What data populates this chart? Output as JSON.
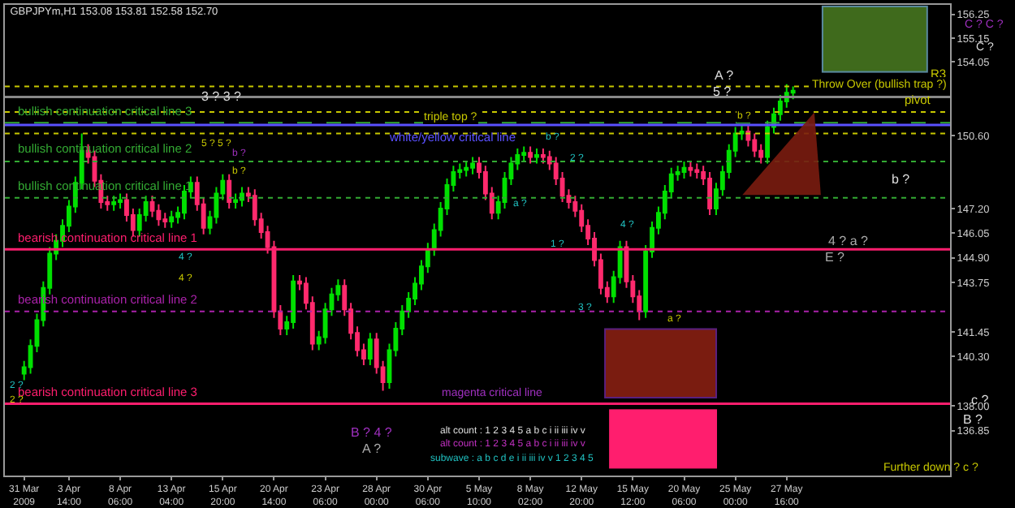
{
  "chart_data": {
    "type": "candlestick",
    "title": "GBPJPYm,H1 153.08 153.81 152.58 152.70",
    "categories": [
      "31 Mar 2009",
      null,
      null,
      null,
      null,
      null,
      null,
      "3 Apr 14:00",
      null,
      null,
      null,
      null,
      null,
      null,
      null,
      "8 Apr 06:00",
      null,
      null,
      null,
      null,
      null,
      null,
      null,
      "13 Apr 04:00",
      null,
      null,
      null,
      null,
      null,
      null,
      null,
      "15 Apr 20:00",
      null,
      null,
      null,
      null,
      null,
      null,
      null,
      "20 Apr 14:00",
      null,
      null,
      null,
      null,
      null,
      null,
      null,
      "23 Apr 06:00",
      null,
      null,
      null,
      null,
      null,
      null,
      null,
      "28 Apr 00:00",
      null,
      null,
      null,
      null,
      null,
      null,
      null,
      "30 Apr 06:00",
      null,
      null,
      null,
      null,
      null,
      null,
      null,
      "5 May 10:00",
      null,
      null,
      null,
      null,
      null,
      null,
      null,
      "8 May 02:00",
      null,
      null,
      null,
      null,
      null,
      null,
      null,
      "12 May 20:00",
      null,
      null,
      null,
      null,
      null,
      null,
      null,
      "15 May 12:00",
      null,
      null,
      null,
      null,
      null,
      null,
      null,
      "20 May 06:00",
      null,
      null,
      null,
      null,
      null,
      null,
      null,
      "25 May 00:00",
      null,
      null,
      null,
      null,
      null,
      null,
      null,
      "27 May 16:00",
      null,
      null,
      null,
      null,
      null,
      null,
      null,
      null,
      null,
      null,
      null,
      null,
      null,
      null,
      null,
      null,
      null,
      null,
      null,
      null,
      null,
      null,
      null,
      null,
      null
    ],
    "ohlc": [
      [
        139.5,
        140.1,
        139.2,
        139.8
      ],
      [
        139.8,
        141.1,
        139.5,
        140.8
      ],
      [
        140.8,
        142.3,
        140.5,
        142.0
      ],
      [
        142.0,
        143.8,
        141.7,
        143.5
      ],
      [
        143.5,
        145.4,
        143.2,
        145.1
      ],
      [
        145.1,
        146.0,
        144.8,
        145.7
      ],
      [
        145.7,
        146.7,
        145.4,
        146.4
      ],
      [
        146.4,
        147.6,
        146.1,
        147.3
      ],
      [
        147.3,
        148.7,
        147.0,
        148.4
      ],
      [
        148.4,
        150.7,
        148.1,
        149.9
      ],
      [
        149.9,
        150.2,
        149.3,
        149.6
      ],
      [
        149.6,
        149.9,
        148.2,
        148.5
      ],
      [
        148.5,
        148.8,
        147.2,
        147.5
      ],
      [
        147.5,
        147.8,
        147.1,
        147.4
      ],
      [
        147.4,
        147.8,
        147.1,
        147.5
      ],
      [
        147.5,
        147.9,
        147.2,
        147.6
      ],
      [
        147.6,
        147.9,
        146.6,
        146.9
      ],
      [
        146.9,
        147.2,
        145.9,
        146.2
      ],
      [
        146.2,
        147.2,
        145.9,
        146.9
      ],
      [
        146.9,
        147.8,
        146.6,
        147.5
      ],
      [
        147.5,
        147.8,
        146.8,
        147.1
      ],
      [
        147.1,
        147.4,
        146.4,
        146.7
      ],
      [
        146.7,
        147.0,
        146.3,
        146.6
      ],
      [
        146.6,
        147.1,
        146.3,
        146.8
      ],
      [
        146.8,
        147.3,
        146.5,
        147.0
      ],
      [
        147.0,
        148.3,
        146.7,
        148.0
      ],
      [
        148.0,
        148.7,
        147.7,
        148.4
      ],
      [
        148.4,
        148.7,
        147.1,
        147.4
      ],
      [
        147.4,
        147.7,
        146.0,
        146.3
      ],
      [
        146.3,
        147.1,
        146.0,
        146.8
      ],
      [
        146.8,
        148.2,
        146.5,
        147.9
      ],
      [
        147.9,
        148.8,
        147.6,
        148.5
      ],
      [
        148.5,
        148.8,
        147.2,
        147.5
      ],
      [
        147.5,
        147.9,
        147.2,
        147.6
      ],
      [
        147.6,
        148.2,
        147.3,
        147.9
      ],
      [
        147.9,
        148.2,
        147.5,
        147.8
      ],
      [
        147.8,
        148.1,
        146.4,
        146.7
      ],
      [
        146.7,
        147.0,
        145.8,
        146.1
      ],
      [
        146.1,
        146.4,
        145.1,
        145.4
      ],
      [
        145.4,
        145.7,
        142.1,
        142.4
      ],
      [
        142.4,
        142.7,
        141.3,
        141.6
      ],
      [
        141.6,
        142.2,
        141.3,
        141.9
      ],
      [
        141.9,
        144.1,
        141.6,
        143.8
      ],
      [
        143.8,
        144.1,
        143.4,
        143.7
      ],
      [
        143.7,
        144.0,
        142.5,
        142.8
      ],
      [
        142.8,
        143.1,
        140.6,
        140.9
      ],
      [
        140.9,
        141.5,
        140.6,
        141.2
      ],
      [
        141.2,
        142.8,
        140.9,
        142.5
      ],
      [
        142.5,
        143.5,
        142.2,
        143.2
      ],
      [
        143.2,
        143.9,
        142.9,
        143.6
      ],
      [
        143.6,
        143.9,
        142.2,
        142.5
      ],
      [
        142.5,
        142.8,
        141.1,
        141.4
      ],
      [
        141.4,
        141.7,
        140.3,
        140.6
      ],
      [
        140.6,
        140.9,
        139.9,
        140.2
      ],
      [
        140.2,
        141.4,
        139.9,
        141.1
      ],
      [
        141.1,
        141.4,
        139.5,
        139.8
      ],
      [
        139.8,
        140.1,
        138.7,
        139.1
      ],
      [
        139.1,
        140.9,
        138.8,
        140.6
      ],
      [
        140.6,
        141.9,
        140.3,
        141.6
      ],
      [
        141.6,
        142.7,
        141.3,
        142.4
      ],
      [
        142.4,
        143.3,
        142.1,
        143.0
      ],
      [
        143.0,
        144.0,
        142.7,
        143.7
      ],
      [
        143.7,
        144.8,
        143.4,
        144.5
      ],
      [
        144.5,
        145.6,
        144.2,
        145.3
      ],
      [
        145.3,
        146.5,
        145.0,
        146.2
      ],
      [
        146.2,
        147.5,
        145.9,
        147.2
      ],
      [
        147.2,
        148.6,
        146.9,
        148.3
      ],
      [
        148.3,
        149.2,
        148.0,
        148.9
      ],
      [
        148.9,
        149.3,
        148.6,
        149.0
      ],
      [
        149.0,
        149.4,
        148.7,
        149.1
      ],
      [
        149.1,
        149.6,
        148.8,
        149.3
      ],
      [
        149.3,
        149.6,
        148.6,
        148.9
      ],
      [
        148.9,
        149.2,
        147.6,
        147.9
      ],
      [
        147.9,
        148.2,
        146.7,
        147.0
      ],
      [
        147.0,
        147.8,
        146.7,
        147.5
      ],
      [
        147.5,
        148.9,
        147.2,
        148.6
      ],
      [
        148.6,
        149.6,
        148.3,
        149.3
      ],
      [
        149.3,
        150.0,
        149.0,
        149.7
      ],
      [
        149.7,
        150.1,
        149.4,
        149.8
      ],
      [
        149.8,
        150.1,
        149.3,
        149.6
      ],
      [
        149.6,
        150.0,
        149.3,
        149.7
      ],
      [
        149.7,
        150.0,
        149.3,
        149.6
      ],
      [
        149.6,
        149.9,
        149.0,
        149.3
      ],
      [
        149.3,
        149.6,
        148.3,
        148.6
      ],
      [
        148.6,
        148.9,
        147.5,
        147.8
      ],
      [
        147.8,
        148.1,
        147.2,
        147.5
      ],
      [
        147.5,
        147.8,
        146.8,
        147.1
      ],
      [
        147.1,
        147.4,
        146.1,
        146.4
      ],
      [
        146.4,
        146.7,
        145.5,
        145.8
      ],
      [
        145.8,
        146.1,
        144.5,
        144.8
      ],
      [
        144.8,
        145.1,
        143.2,
        143.5
      ],
      [
        143.5,
        143.8,
        142.8,
        143.1
      ],
      [
        143.1,
        144.3,
        142.8,
        144.0
      ],
      [
        144.0,
        145.7,
        143.7,
        145.4
      ],
      [
        145.4,
        145.7,
        143.5,
        143.8
      ],
      [
        143.8,
        144.1,
        142.8,
        143.1
      ],
      [
        143.1,
        143.4,
        142.0,
        142.4
      ],
      [
        142.4,
        145.5,
        142.1,
        145.2
      ],
      [
        145.2,
        146.6,
        144.9,
        146.3
      ],
      [
        146.3,
        147.3,
        146.0,
        147.0
      ],
      [
        147.0,
        148.3,
        146.7,
        148.0
      ],
      [
        148.0,
        149.1,
        147.7,
        148.8
      ],
      [
        148.8,
        149.2,
        148.5,
        148.9
      ],
      [
        148.9,
        149.4,
        148.6,
        149.1
      ],
      [
        149.1,
        149.4,
        148.7,
        149.0
      ],
      [
        149.0,
        149.3,
        148.6,
        148.9
      ],
      [
        148.9,
        149.2,
        148.3,
        148.6
      ],
      [
        148.6,
        148.9,
        146.9,
        147.2
      ],
      [
        147.2,
        148.4,
        146.9,
        148.1
      ],
      [
        148.1,
        149.2,
        147.8,
        148.9
      ],
      [
        148.9,
        150.2,
        148.6,
        149.9
      ],
      [
        149.9,
        151.0,
        149.6,
        150.7
      ],
      [
        150.7,
        151.1,
        150.4,
        150.8
      ],
      [
        150.8,
        151.1,
        150.1,
        150.4
      ],
      [
        150.4,
        150.7,
        149.6,
        149.9
      ],
      [
        149.9,
        150.2,
        149.3,
        149.6
      ],
      [
        149.6,
        151.3,
        149.3,
        151.0
      ],
      [
        151.0,
        151.9,
        150.7,
        151.6
      ],
      [
        151.6,
        152.5,
        151.3,
        152.2
      ],
      [
        152.2,
        153.0,
        151.9,
        152.6
      ],
      [
        152.6,
        152.9,
        152.3,
        152.7
      ],
      null,
      null,
      null,
      null,
      null,
      null,
      null,
      null,
      null,
      null,
      null,
      null,
      null,
      null,
      null,
      null,
      null,
      null,
      null,
      null,
      null,
      null,
      null,
      null
    ],
    "ylim": [
      134.75,
      156.7
    ],
    "yticks": [
      156.25,
      155.15,
      154.05,
      {
        "value": 150.6,
        "label": "150.60"
      },
      {
        "value": 147.2,
        "label": "147.20"
      },
      146.05,
      {
        "value": 144.9,
        "label": "144.90"
      },
      143.75,
      141.45,
      {
        "value": 140.3,
        "label": "140.30"
      },
      {
        "value": 138.0,
        "label": "138.00"
      },
      136.85
    ],
    "ref_lines": [
      {
        "axis": "y",
        "value": 152.9,
        "label": "R3",
        "color": "#c8c800",
        "line_style": "dotted"
      },
      {
        "axis": "y",
        "value": 151.7,
        "label": "pivot",
        "color": "#c8c800",
        "line_style": "dotted"
      },
      {
        "axis": "y",
        "value": 151.2,
        "label": "bullish continuation critical line 3",
        "color": "#33aa33",
        "line_style": "dashed"
      },
      {
        "axis": "y",
        "value": 151.1,
        "label": "white/yellow critical line",
        "color": "#5a50ff",
        "line_style": "solid"
      },
      {
        "axis": "y",
        "value": 149.4,
        "label": "bullish continuation critical line 2",
        "color": "#33aa33",
        "line_style": "dotted"
      },
      {
        "axis": "y",
        "value": 147.7,
        "label": "bullish continuation critical line 1",
        "color": "#33aa33",
        "line_style": "dotted"
      },
      {
        "axis": "y",
        "value": 145.3,
        "label": "bearish continuation critical line 1",
        "color": "#ff1e6e",
        "line_style": "solid"
      },
      {
        "axis": "y",
        "value": 142.4,
        "label": "bearish continuation critical line 2",
        "color": "#aa22aa",
        "line_style": "dotted"
      },
      {
        "axis": "y",
        "value": 138.1,
        "label": "bearish continuation critical line 3",
        "color": "#ff1e6e",
        "line_style": "solid"
      },
      {
        "axis": "y",
        "value": 152.4,
        "color": "#888888",
        "line_style": "solid"
      },
      {
        "axis": "y",
        "value": 150.7,
        "color": "#c8c800",
        "line_style": "dotted"
      }
    ],
    "annotations": [
      "3 ? 3 ?",
      "triple top ?",
      "A ?",
      "5 ?",
      "Throw Over (bullish trap ?)",
      "C ? C ?",
      "C ?",
      "b ?",
      "4 ? a ?",
      "E ?",
      "c ?",
      "B ?",
      "Further down ? c ?",
      "magenta critical line",
      "B ? 4 ?",
      "A ?",
      "alt count : 1 2 3 4 5 a b c i ii iii iv v",
      "alt count : 1 2 3 4 5 a b c i ii iii iv v",
      "subwave : a b c d e i ii iii iv v 1 2 3 4 5",
      "4 ?",
      "4 ?",
      "2 ?",
      "2 ?",
      "b ?",
      "b ?",
      "5 ? 5 ?",
      "b ?",
      "2 ?",
      "a ?",
      "4 ?",
      "1 ?",
      "3 ?",
      "a ?",
      "b ?"
    ]
  }
}
